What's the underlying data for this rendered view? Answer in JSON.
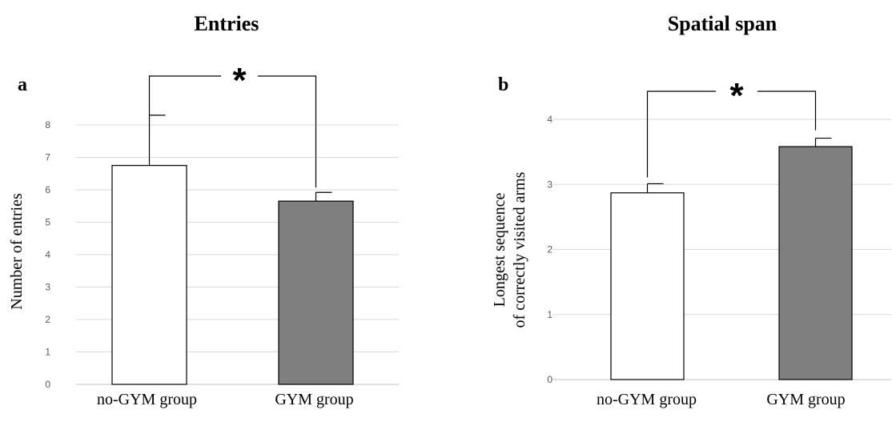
{
  "chart_data": [
    {
      "type": "bar",
      "panel_label": "a",
      "title": "Entries",
      "ylabel": "Number of entries",
      "categories": [
        "no-GYM group",
        "GYM group"
      ],
      "values": [
        6.75,
        5.65
      ],
      "error_upper": [
        8.3,
        5.92
      ],
      "ylim": [
        0,
        8
      ],
      "yticks": [
        "0",
        "1",
        "2",
        "3",
        "4",
        "5",
        "6",
        "7",
        "8"
      ],
      "grid": true,
      "bar_colors": [
        "#ffffff",
        "#7f7f7f"
      ],
      "significance": "*"
    },
    {
      "type": "bar",
      "panel_label": "b",
      "title": "Spatial span",
      "ylabel": [
        "Longest sequence",
        "of correctly visited  arms"
      ],
      "categories": [
        "no-GYM group",
        "GYM group"
      ],
      "values": [
        2.87,
        3.58
      ],
      "error_upper": [
        3.01,
        3.71
      ],
      "ylim": [
        0,
        4
      ],
      "yticks": [
        "0",
        "1",
        "2",
        "3",
        "4"
      ],
      "grid": true,
      "bar_colors": [
        "#ffffff",
        "#7f7f7f"
      ],
      "significance": "*"
    }
  ]
}
